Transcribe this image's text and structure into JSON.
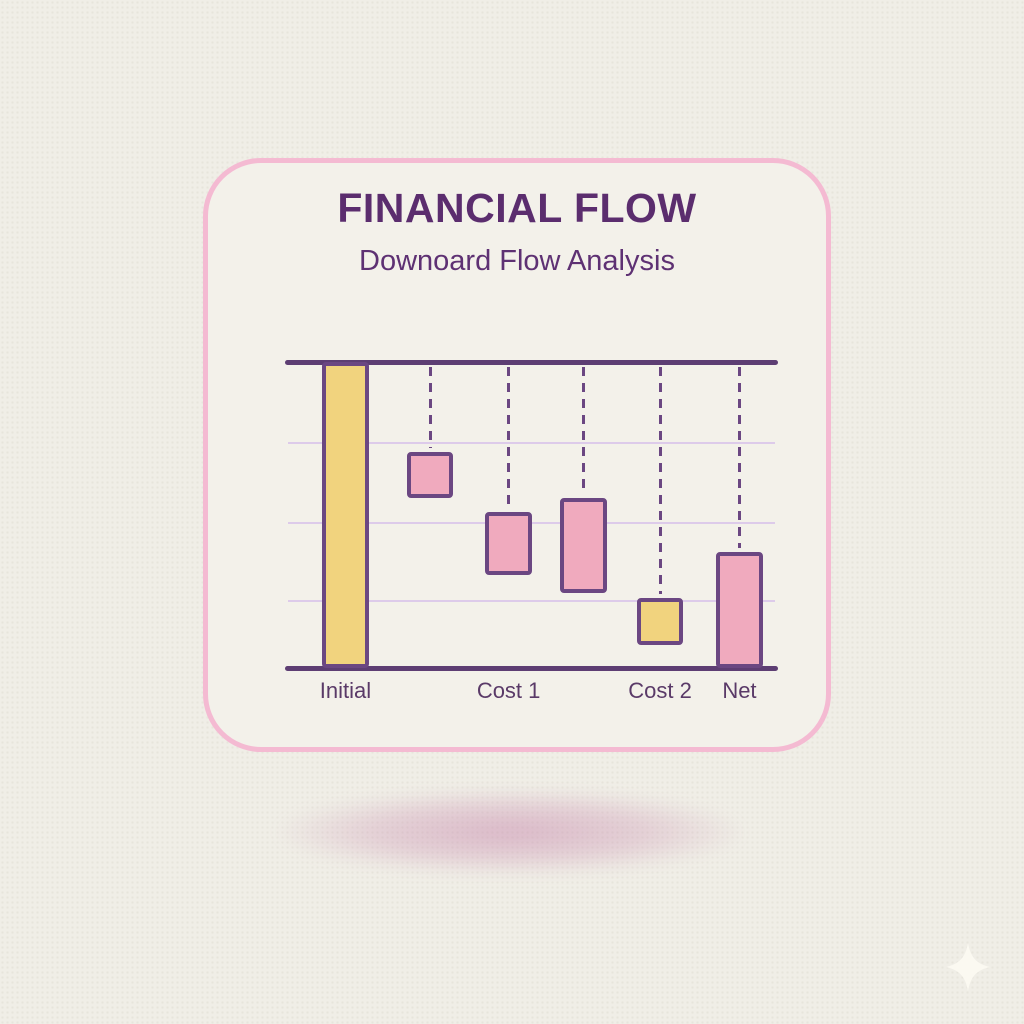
{
  "page": {
    "background_color": "#f0eee7"
  },
  "card": {
    "title": "FINANCIAL FLOW",
    "subtitle": "Downoard Flow Analysis",
    "colors": {
      "border": "#f4bad2",
      "background": "#f3f1ea",
      "title_text": "#5b2d6e",
      "subtitle_text": "#5e3173",
      "drop_shadow": "#c584aa"
    }
  },
  "chart_data": {
    "type": "bar",
    "subtype": "waterfall",
    "title": "FINANCIAL FLOW",
    "subtitle": "Downoard Flow Analysis",
    "xlabel": "",
    "ylabel": "",
    "ylim": [
      0,
      100
    ],
    "grid": true,
    "gridline_values": [
      73.5,
      47.5,
      22
    ],
    "legend": "none",
    "categories": [
      "Initial",
      "",
      "Cost 1",
      "",
      "Cost 2",
      "Net"
    ],
    "bars": [
      {
        "label": "Initial",
        "start": 0,
        "end": 100,
        "color": "yellow",
        "center": 0.118,
        "connector": false
      },
      {
        "label": "",
        "start": 55.5,
        "end": 70.5,
        "color": "pink",
        "center": 0.292,
        "connector": true
      },
      {
        "label": "Cost 1",
        "start": 30.5,
        "end": 51,
        "color": "pink",
        "center": 0.453,
        "connector": true
      },
      {
        "label": "",
        "start": 24.5,
        "end": 55.5,
        "color": "pink",
        "center": 0.607,
        "connector": true
      },
      {
        "label": "Cost 2",
        "start": 7.5,
        "end": 23,
        "color": "yellow",
        "center": 0.764,
        "connector": true
      },
      {
        "label": "Net",
        "start": 0,
        "end": 38,
        "color": "pink",
        "center": 0.927,
        "connector": true
      }
    ],
    "bar_width_fraction": 0.0955,
    "palette": {
      "yellow": "#f1d37e",
      "pink": "#f0aabe",
      "bar_border": "#6b4782",
      "axis": "#5d3e73",
      "gridline": "#ddcbea",
      "connector": "#6b4782",
      "tick_label": "#5a3a68"
    }
  },
  "decorations": {
    "sparkle_icon": "four-point-star",
    "sparkle_color": "#fbf9f1"
  }
}
